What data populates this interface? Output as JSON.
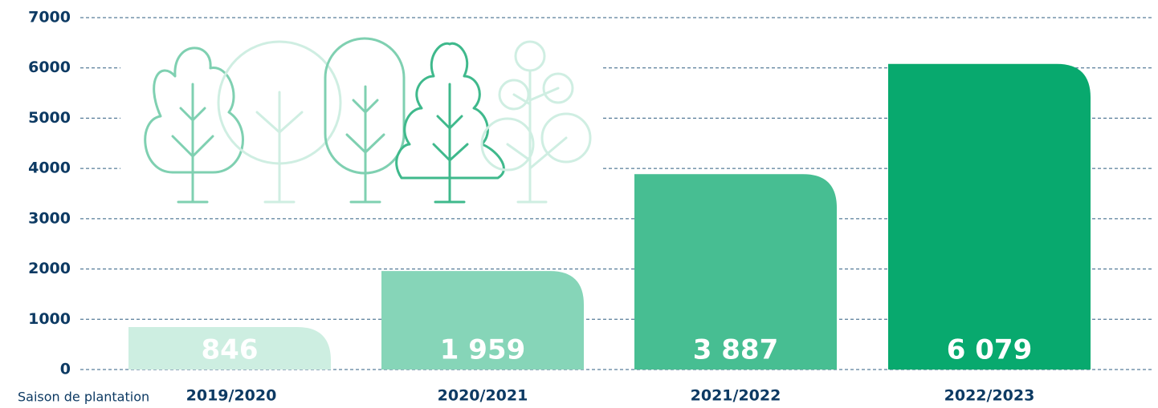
{
  "chart_data": {
    "type": "bar",
    "x_label": "Saison de plantation",
    "categories": [
      "2019/2020",
      "2020/2021",
      "2021/2022",
      "2022/2023"
    ],
    "values": [
      846,
      1959,
      3887,
      6079
    ],
    "value_labels": [
      "846",
      "1 959",
      "3 887",
      "6 079"
    ],
    "colors": [
      "#cdeee1",
      "#86d5b8",
      "#47be92",
      "#08a96e"
    ],
    "ylim": [
      0,
      7000
    ],
    "yticks": [
      0,
      1000,
      2000,
      3000,
      4000,
      5000,
      6000,
      7000
    ],
    "grid": true
  }
}
